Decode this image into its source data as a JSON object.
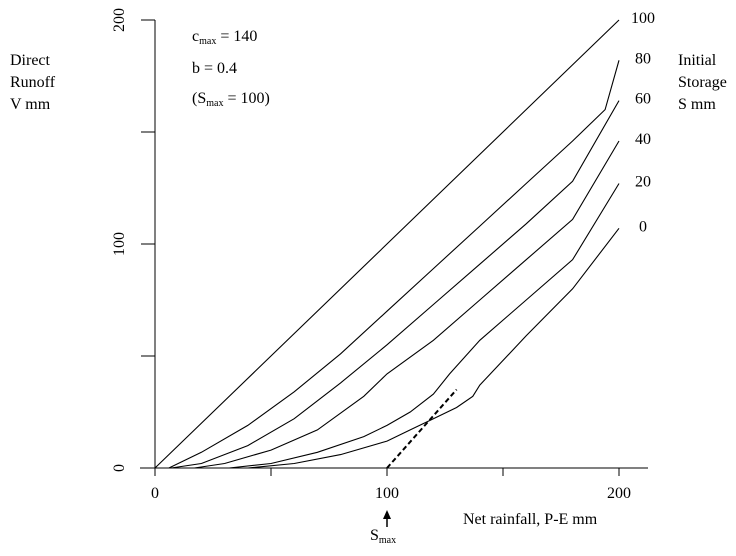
{
  "chart_data": {
    "type": "line",
    "title": "",
    "ylabel": [
      "Direct",
      "Runoff",
      "V mm"
    ],
    "xlabel": "Net rainfall, P-E mm",
    "legend_title": [
      "Initial",
      "Storage",
      "S mm"
    ],
    "xlim": [
      0,
      200
    ],
    "ylim": [
      0,
      200
    ],
    "x_ticks": [
      0,
      100,
      200
    ],
    "y_ticks": [
      0,
      100,
      200
    ],
    "parameters": {
      "cmax_base": "c",
      "cmax_sub": "max",
      "cmax_value": "= 140",
      "b": "b = 0.4",
      "smax_open": "(S",
      "smax_sub": "max",
      "smax_value": "= 100)"
    },
    "smax_marker": {
      "x": 100,
      "base": "S",
      "sub": "max"
    },
    "series": [
      {
        "name": "100",
        "points": [
          [
            0,
            0
          ],
          [
            200,
            200
          ]
        ]
      },
      {
        "name": "80",
        "points": [
          [
            6,
            0
          ],
          [
            20,
            7
          ],
          [
            40,
            19
          ],
          [
            60,
            34
          ],
          [
            80,
            51
          ],
          [
            100,
            70
          ],
          [
            120,
            89
          ],
          [
            140,
            108
          ],
          [
            160,
            127
          ],
          [
            180,
            146
          ],
          [
            194,
            160
          ],
          [
            200,
            182
          ]
        ]
      },
      {
        "name": "60",
        "points": [
          [
            7,
            0
          ],
          [
            20,
            2
          ],
          [
            40,
            10
          ],
          [
            60,
            22
          ],
          [
            70,
            30
          ],
          [
            80,
            38
          ],
          [
            100,
            55
          ],
          [
            120,
            73
          ],
          [
            140,
            91
          ],
          [
            160,
            109
          ],
          [
            180,
            128
          ],
          [
            200,
            164
          ]
        ]
      },
      {
        "name": "40",
        "points": [
          [
            17,
            0
          ],
          [
            30,
            2
          ],
          [
            50,
            8
          ],
          [
            70,
            17
          ],
          [
            90,
            32
          ],
          [
            100,
            42
          ],
          [
            120,
            57
          ],
          [
            140,
            75
          ],
          [
            160,
            93
          ],
          [
            180,
            111
          ],
          [
            200,
            146
          ]
        ]
      },
      {
        "name": "20",
        "points": [
          [
            32,
            0
          ],
          [
            50,
            2
          ],
          [
            70,
            7
          ],
          [
            90,
            14
          ],
          [
            100,
            19
          ],
          [
            110,
            25
          ],
          [
            120,
            33
          ],
          [
            127,
            42
          ],
          [
            140,
            57
          ],
          [
            160,
            75
          ],
          [
            180,
            93
          ],
          [
            200,
            127
          ]
        ]
      },
      {
        "name": "0",
        "points": [
          [
            40,
            0
          ],
          [
            60,
            2
          ],
          [
            80,
            6
          ],
          [
            100,
            12
          ],
          [
            110,
            17
          ],
          [
            120,
            22
          ],
          [
            130,
            27
          ],
          [
            137,
            32
          ],
          [
            140,
            37
          ],
          [
            160,
            59
          ],
          [
            180,
            80
          ],
          [
            200,
            107
          ]
        ]
      }
    ],
    "dashed_line": {
      "points": [
        [
          100,
          0
        ],
        [
          130,
          35
        ]
      ]
    }
  }
}
